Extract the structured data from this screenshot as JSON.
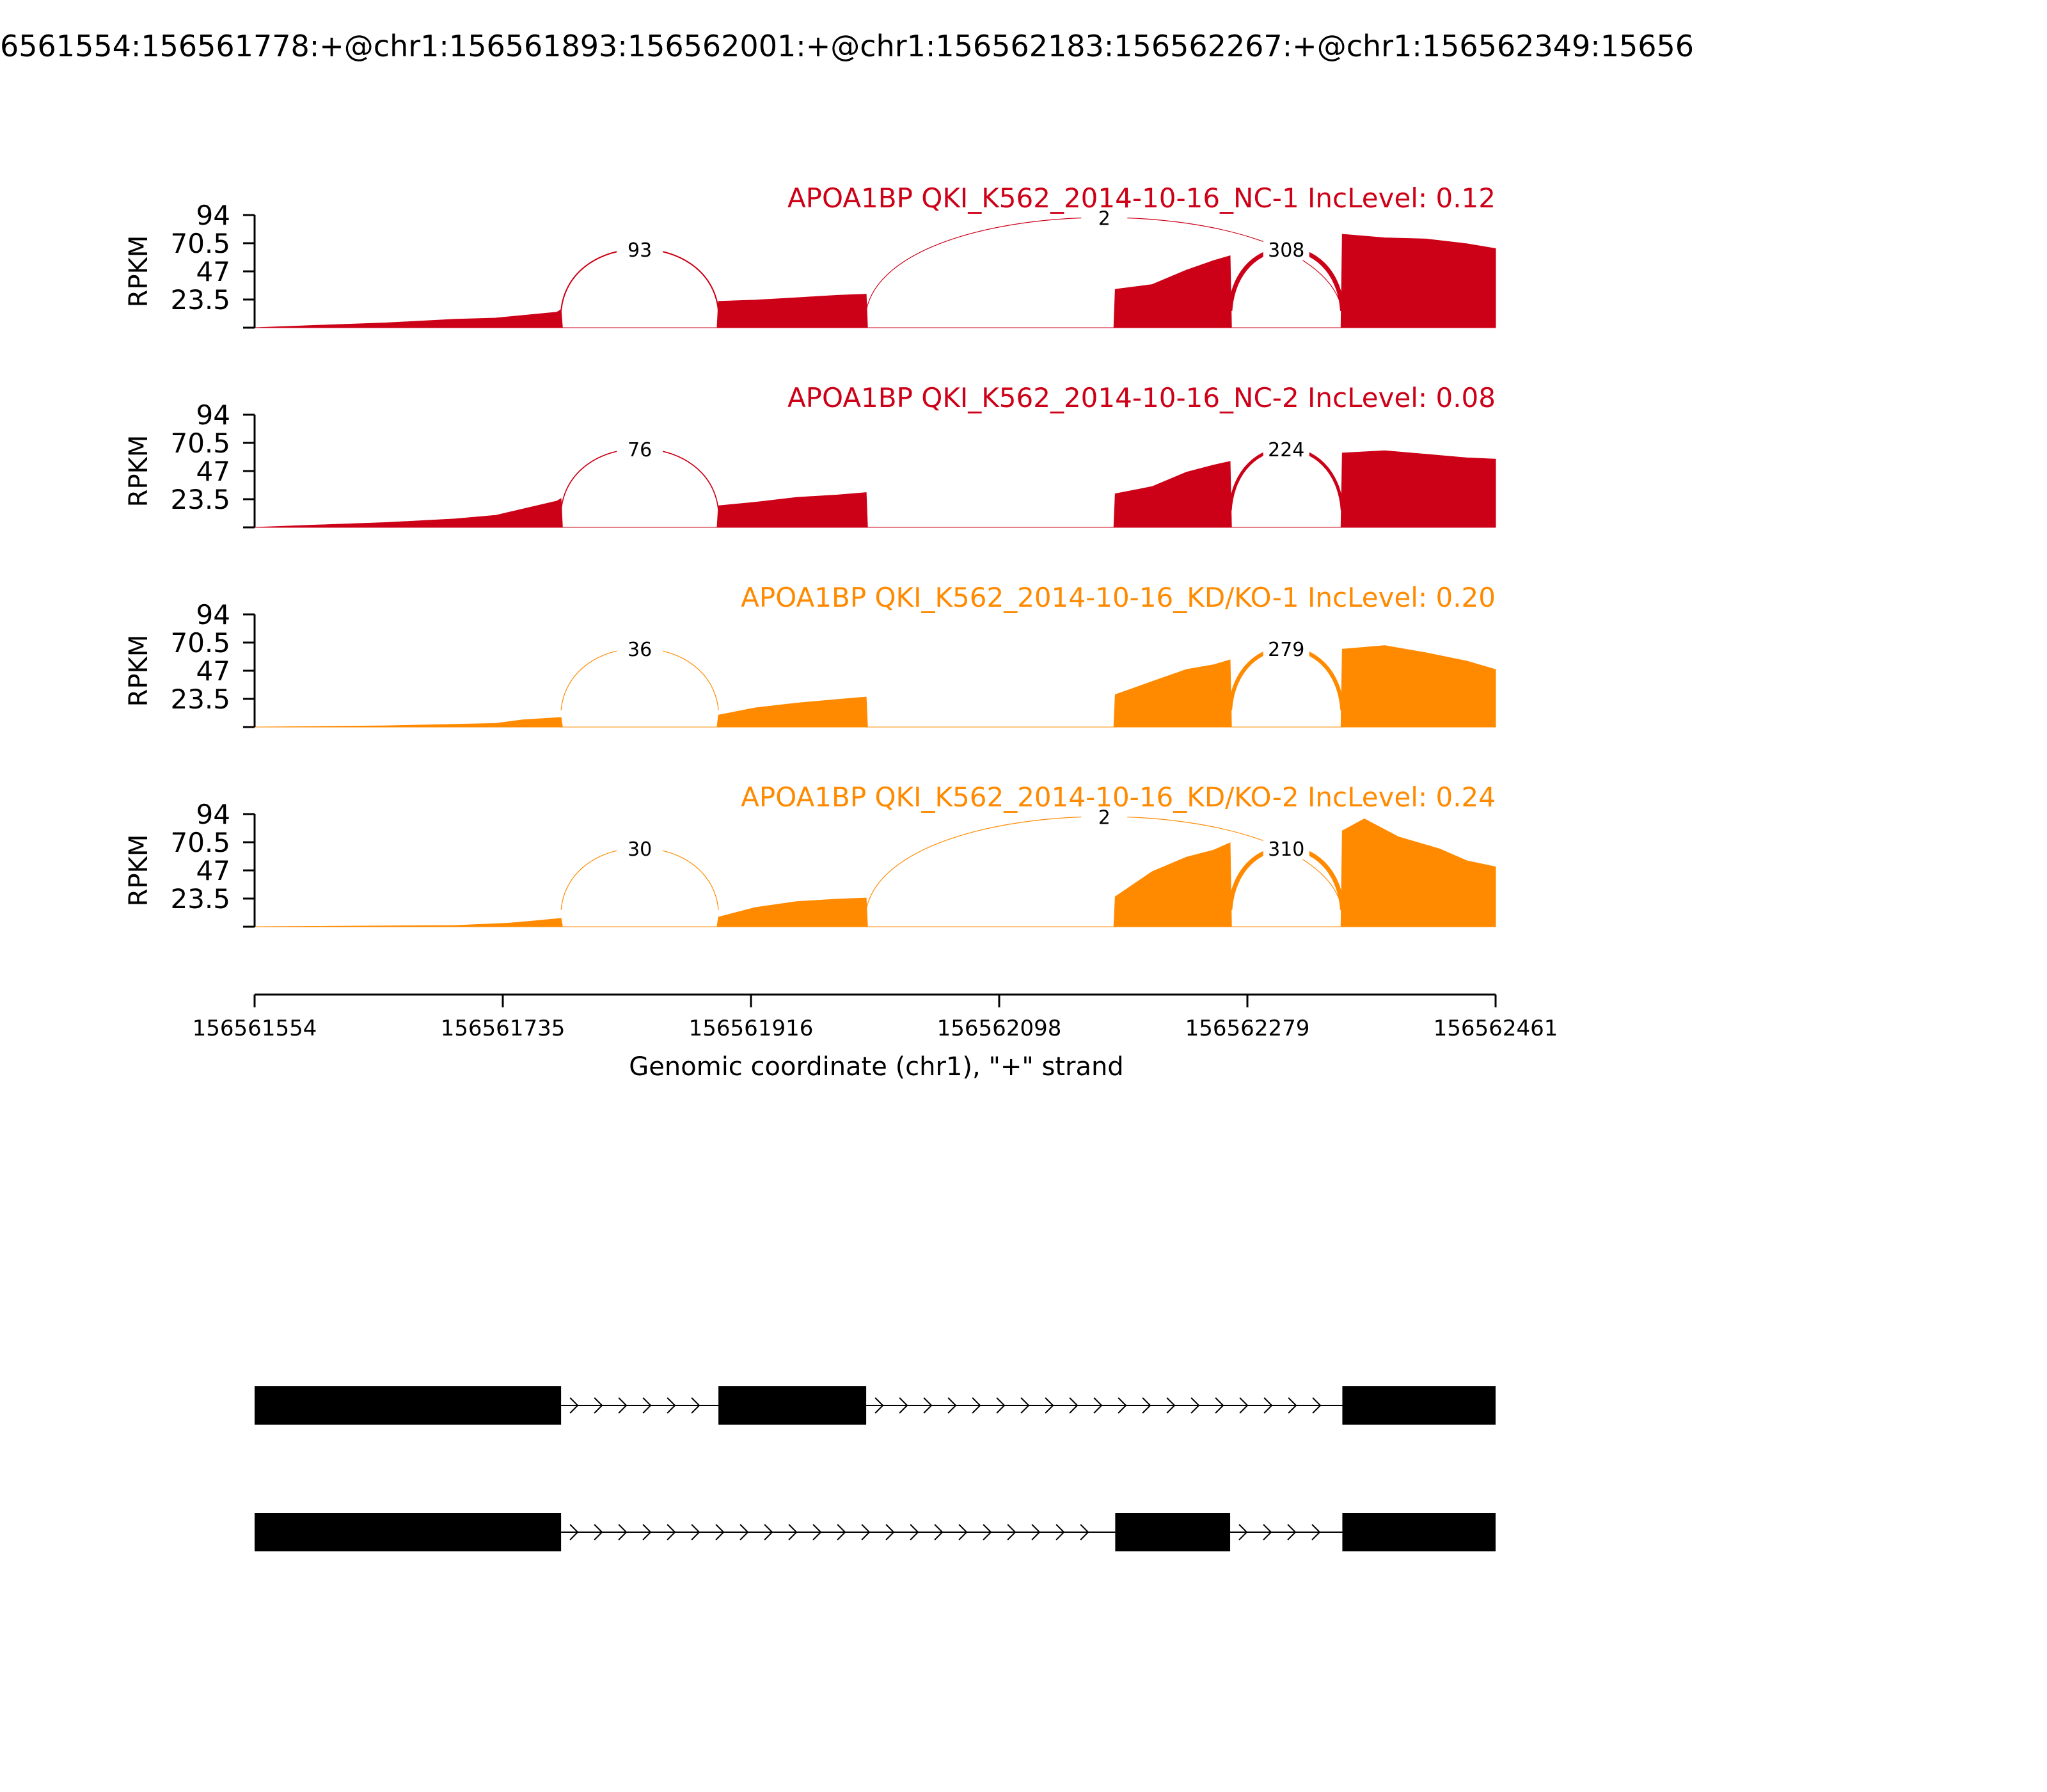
{
  "title": "6561554:156561778:+@chr1:156561893:156562001:+@chr1:156562183:156562267:+@chr1:156562349:15656",
  "colors": {
    "nc": "#cc0017",
    "kd": "#ff8a00",
    "axis": "#000000"
  },
  "chart_data": {
    "type": "area",
    "subtype": "sashimi",
    "xlabel": "Genomic coordinate (chr1), \"+\" strand",
    "ylabel": "RPKM",
    "xlim": [
      156561554,
      156562461
    ],
    "xticks": [
      "156561554",
      "156561735",
      "156561916",
      "156562098",
      "156562279",
      "156562461"
    ],
    "ylim": [
      0,
      94
    ],
    "yticks": [
      "94",
      "70.5",
      "47",
      "23.5"
    ],
    "exons": [
      [
        156561554,
        156561778
      ],
      [
        156561893,
        156562001
      ],
      [
        156562183,
        156562267
      ],
      [
        156562349,
        156562461
      ]
    ],
    "samples": [
      {
        "label": "APOA1BP QKI_K562_2014-10-16_NC-1 IncLevel: 0.12",
        "group": "nc",
        "profile": [
          [
            156561554,
            0
          ],
          [
            156561600,
            2
          ],
          [
            156561650,
            4
          ],
          [
            156561700,
            7
          ],
          [
            156561730,
            8
          ],
          [
            156561775,
            13
          ],
          [
            156561778,
            15
          ],
          [
            156561779,
            0
          ],
          [
            156561892,
            0
          ],
          [
            156561893,
            22
          ],
          [
            156561920,
            23
          ],
          [
            156561950,
            25
          ],
          [
            156561980,
            27
          ],
          [
            156562001,
            28
          ],
          [
            156562002,
            0
          ],
          [
            156562182,
            0
          ],
          [
            156562183,
            32
          ],
          [
            156562210,
            36
          ],
          [
            156562235,
            48
          ],
          [
            156562255,
            56
          ],
          [
            156562267,
            60
          ],
          [
            156562268,
            0
          ],
          [
            156562348,
            0
          ],
          [
            156562349,
            78
          ],
          [
            156562380,
            75
          ],
          [
            156562410,
            74
          ],
          [
            156562440,
            70
          ],
          [
            156562461,
            66
          ]
        ],
        "junctions": [
          {
            "from": 156561778,
            "to": 156561893,
            "count": "93"
          },
          {
            "from": 156562001,
            "to": 156562349,
            "count": "2"
          },
          {
            "from": 156562267,
            "to": 156562349,
            "count": "308"
          }
        ]
      },
      {
        "label": "APOA1BP QKI_K562_2014-10-16_NC-2 IncLevel: 0.08",
        "group": "nc",
        "profile": [
          [
            156561554,
            0
          ],
          [
            156561600,
            2
          ],
          [
            156561650,
            4
          ],
          [
            156561700,
            7
          ],
          [
            156561730,
            10
          ],
          [
            156561775,
            22
          ],
          [
            156561778,
            24
          ],
          [
            156561779,
            0
          ],
          [
            156561892,
            0
          ],
          [
            156561893,
            18
          ],
          [
            156561920,
            21
          ],
          [
            156561950,
            25
          ],
          [
            156561980,
            27
          ],
          [
            156562001,
            29
          ],
          [
            156562002,
            0
          ],
          [
            156562182,
            0
          ],
          [
            156562183,
            28
          ],
          [
            156562210,
            34
          ],
          [
            156562235,
            46
          ],
          [
            156562255,
            52
          ],
          [
            156562267,
            55
          ],
          [
            156562268,
            0
          ],
          [
            156562348,
            0
          ],
          [
            156562349,
            62
          ],
          [
            156562380,
            64
          ],
          [
            156562410,
            61
          ],
          [
            156562440,
            58
          ],
          [
            156562461,
            57
          ]
        ],
        "junctions": [
          {
            "from": 156561778,
            "to": 156561893,
            "count": "76"
          },
          {
            "from": 156562267,
            "to": 156562349,
            "count": "224"
          }
        ]
      },
      {
        "label": "APOA1BP QKI_K562_2014-10-16_KD/KO-1 IncLevel: 0.20",
        "group": "kd",
        "profile": [
          [
            156561554,
            0
          ],
          [
            156561650,
            1
          ],
          [
            156561730,
            3
          ],
          [
            156561750,
            6
          ],
          [
            156561778,
            8
          ],
          [
            156561779,
            0
          ],
          [
            156561892,
            0
          ],
          [
            156561893,
            10
          ],
          [
            156561920,
            16
          ],
          [
            156561950,
            20
          ],
          [
            156561980,
            23
          ],
          [
            156562001,
            25
          ],
          [
            156562002,
            0
          ],
          [
            156562182,
            0
          ],
          [
            156562183,
            27
          ],
          [
            156562210,
            38
          ],
          [
            156562235,
            48
          ],
          [
            156562255,
            52
          ],
          [
            156562267,
            56
          ],
          [
            156562268,
            0
          ],
          [
            156562348,
            0
          ],
          [
            156562349,
            65
          ],
          [
            156562380,
            68
          ],
          [
            156562410,
            62
          ],
          [
            156562440,
            55
          ],
          [
            156562461,
            48
          ]
        ],
        "junctions": [
          {
            "from": 156561778,
            "to": 156561893,
            "count": "36"
          },
          {
            "from": 156562267,
            "to": 156562349,
            "count": "279"
          }
        ]
      },
      {
        "label": "APOA1BP QKI_K562_2014-10-16_KD/KO-2 IncLevel: 0.24",
        "group": "kd",
        "profile": [
          [
            156561554,
            0
          ],
          [
            156561700,
            1
          ],
          [
            156561740,
            3
          ],
          [
            156561760,
            5
          ],
          [
            156561778,
            7
          ],
          [
            156561779,
            0
          ],
          [
            156561892,
            0
          ],
          [
            156561893,
            8
          ],
          [
            156561920,
            16
          ],
          [
            156561950,
            21
          ],
          [
            156561980,
            23
          ],
          [
            156562001,
            24
          ],
          [
            156562002,
            0
          ],
          [
            156562182,
            0
          ],
          [
            156562183,
            25
          ],
          [
            156562210,
            46
          ],
          [
            156562235,
            58
          ],
          [
            156562255,
            64
          ],
          [
            156562267,
            70
          ],
          [
            156562268,
            0
          ],
          [
            156562348,
            0
          ],
          [
            156562349,
            80
          ],
          [
            156562365,
            90
          ],
          [
            156562390,
            75
          ],
          [
            156562420,
            65
          ],
          [
            156562440,
            55
          ],
          [
            156562461,
            50
          ]
        ],
        "junctions": [
          {
            "from": 156561778,
            "to": 156561893,
            "count": "30"
          },
          {
            "from": 156562001,
            "to": 156562349,
            "count": "2"
          },
          {
            "from": 156562267,
            "to": 156562349,
            "count": "310"
          }
        ]
      }
    ],
    "isoforms": [
      {
        "exons": [
          [
            156561554,
            156561778
          ],
          [
            156561893,
            156562001
          ],
          [
            156562349,
            156562461
          ]
        ]
      },
      {
        "exons": [
          [
            156561554,
            156561778
          ],
          [
            156562183,
            156562267
          ],
          [
            156562349,
            156562461
          ]
        ]
      }
    ]
  }
}
